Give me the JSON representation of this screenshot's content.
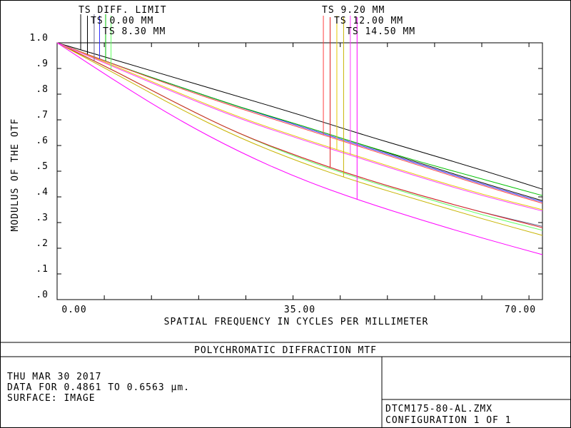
{
  "chart_data": {
    "type": "line",
    "title": "POLYCHROMATIC DIFFRACTION MTF",
    "xlabel": "SPATIAL FREQUENCY IN CYCLES PER MILLIMETER",
    "ylabel": "MODULUS OF THE OTF",
    "xlim": [
      0,
      72
    ],
    "ylim": [
      0,
      1
    ],
    "x_ticks": [
      0,
      35,
      70
    ],
    "x_tick_labels": [
      "0.00",
      "35.00",
      "70.00"
    ],
    "y_ticks": [
      0,
      0.1,
      0.2,
      0.3,
      0.4,
      0.5,
      0.6,
      0.7,
      0.8,
      0.9,
      1.0
    ],
    "y_tick_labels": [
      ".0",
      ".1",
      ".2",
      ".3",
      ".4",
      ".5",
      ".6",
      ".7",
      ".8",
      ".9",
      "1.0"
    ],
    "grid": false,
    "x": [
      0,
      9,
      18,
      27,
      36,
      45,
      54,
      63,
      72
    ],
    "series": [
      {
        "name": "TS DIFF. LIMIT",
        "color": "#000000",
        "values": [
          1.0,
          0.93,
          0.86,
          0.79,
          0.72,
          0.645,
          0.575,
          0.505,
          0.43
        ],
        "marker_x": 3.5
      },
      {
        "name": "TS 0.00 MM",
        "color": "#000000",
        "values": [
          1.0,
          0.91,
          0.83,
          0.75,
          0.68,
          0.605,
          0.53,
          0.455,
          0.385
        ],
        "marker_x": 4.5
      },
      {
        "name": "TS 0.00 MM",
        "color": "#6a6a8e",
        "values": [
          1.0,
          0.885,
          0.76,
          0.645,
          0.555,
          0.475,
          0.405,
          0.34,
          0.285
        ],
        "marker_x": 5.5
      },
      {
        "name": "TS 8.30 MM",
        "color": "#3030ff",
        "values": [
          1.0,
          0.91,
          0.83,
          0.75,
          0.675,
          0.6,
          0.525,
          0.45,
          0.38
        ],
        "marker_x": 6.3
      },
      {
        "name": "TS 8.30 MM",
        "color": "#00c000",
        "values": [
          1.0,
          0.91,
          0.83,
          0.75,
          0.68,
          0.605,
          0.535,
          0.47,
          0.405
        ],
        "marker_x": 7.2
      },
      {
        "name": "TS 8.30 MM",
        "color": "#60ff60",
        "values": [
          1.0,
          0.885,
          0.76,
          0.645,
          0.55,
          0.47,
          0.4,
          0.33,
          0.27
        ],
        "marker_x": 8.0
      },
      {
        "name": "TS 9.20 MM",
        "color": "#ff4040",
        "values": [
          1.0,
          0.91,
          0.825,
          0.745,
          0.67,
          0.595,
          0.52,
          0.445,
          0.375
        ],
        "marker_x": 39.5
      },
      {
        "name": "TS 9.20 MM",
        "color": "#e02020",
        "values": [
          1.0,
          0.885,
          0.76,
          0.645,
          0.555,
          0.475,
          0.405,
          0.34,
          0.28
        ],
        "marker_x": 40.5
      },
      {
        "name": "TS 12.00 MM",
        "color": "#e6c800",
        "values": [
          1.0,
          0.905,
          0.805,
          0.71,
          0.63,
          0.555,
          0.48,
          0.41,
          0.35
        ],
        "marker_x": 41.5
      },
      {
        "name": "TS 12.00 MM",
        "color": "#c8b400",
        "values": [
          1.0,
          0.875,
          0.745,
          0.63,
          0.535,
          0.455,
          0.385,
          0.315,
          0.25
        ],
        "marker_x": 42.5
      },
      {
        "name": "TS 14.50 MM",
        "color": "#ff3cff",
        "values": [
          1.0,
          0.9,
          0.8,
          0.705,
          0.625,
          0.55,
          0.475,
          0.405,
          0.345
        ],
        "marker_x": 43.5
      },
      {
        "name": "TS 14.50 MM",
        "color": "#ff00ff",
        "values": [
          1.0,
          0.845,
          0.7,
          0.575,
          0.47,
          0.385,
          0.31,
          0.24,
          0.175
        ],
        "marker_x": 44.5
      }
    ],
    "legend": {
      "left_labels": [
        "TS DIFF. LIMIT",
        "TS 0.00 MM",
        "TS 8.30 MM"
      ],
      "right_labels": [
        "TS 9.20 MM",
        "TS 12.00 MM",
        "TS 14.50 MM"
      ]
    }
  },
  "info": {
    "date": "THU MAR 30 2017",
    "data_range": "DATA FOR 0.4861 TO 0.6563 µm.",
    "surface": "SURFACE: IMAGE",
    "filename": "DTCM175-80-AL.ZMX",
    "configuration": "CONFIGURATION 1 OF 1"
  }
}
